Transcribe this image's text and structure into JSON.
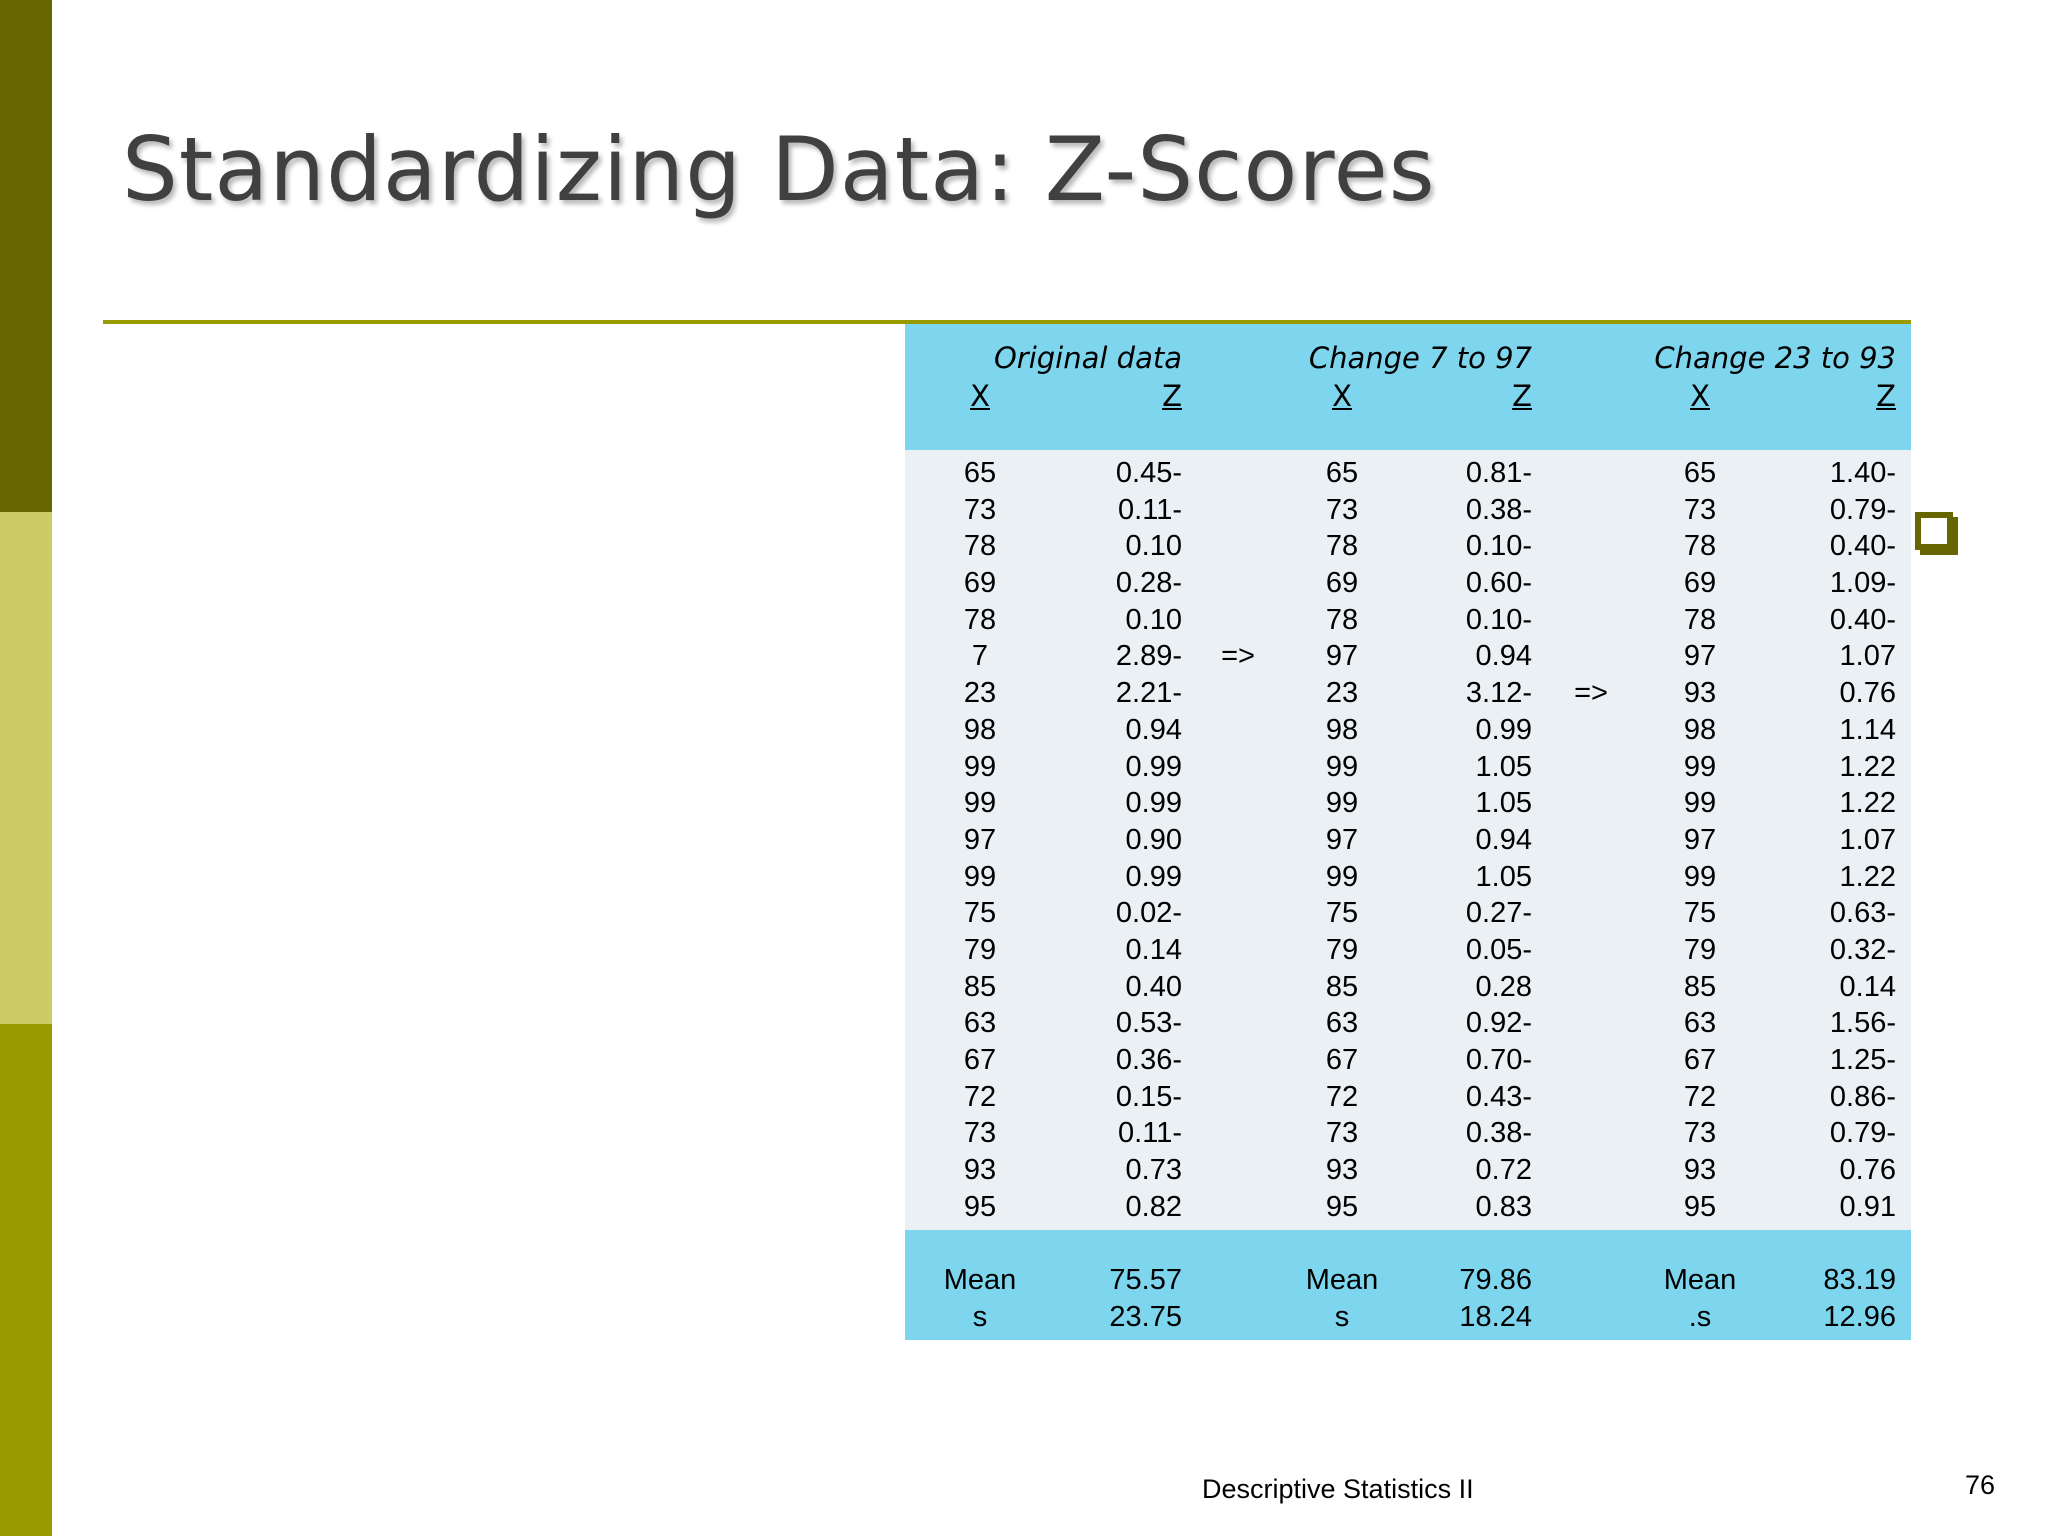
{
  "slide": {
    "title": "Standardizing Data:  Z-Scores",
    "footer": "Descriptive Statistics II",
    "page_number": "76",
    "colors": {
      "band_top": "#666600",
      "band_mid": "#CCCC66",
      "band_bottom": "#999900",
      "table_header": "#7DD6EE",
      "table_body": "#EAF0F4"
    }
  },
  "table": {
    "group_headers": [
      "Original data",
      "Change 7 to 97",
      "Change 23 to 93"
    ],
    "col_x": "X",
    "col_z": "Z",
    "rows": [
      {
        "x1": "65",
        "z1": "0.45-",
        "a1": "",
        "x2": "65",
        "z2": "0.81-",
        "a2": "",
        "x3": "65",
        "z3": "1.40-"
      },
      {
        "x1": "73",
        "z1": "0.11-",
        "a1": "",
        "x2": "73",
        "z2": "0.38-",
        "a2": "",
        "x3": "73",
        "z3": "0.79-"
      },
      {
        "x1": "78",
        "z1": "0.10",
        "a1": "",
        "x2": "78",
        "z2": "0.10-",
        "a2": "",
        "x3": "78",
        "z3": "0.40-"
      },
      {
        "x1": "69",
        "z1": "0.28-",
        "a1": "",
        "x2": "69",
        "z2": "0.60-",
        "a2": "",
        "x3": "69",
        "z3": "1.09-"
      },
      {
        "x1": "78",
        "z1": "0.10",
        "a1": "",
        "x2": "78",
        "z2": "0.10-",
        "a2": "",
        "x3": "78",
        "z3": "0.40-"
      },
      {
        "x1": "7",
        "z1": "2.89-",
        "a1": "=>",
        "x2": "97",
        "z2": "0.94",
        "a2": "",
        "x3": "97",
        "z3": "1.07"
      },
      {
        "x1": "23",
        "z1": "2.21-",
        "a1": "",
        "x2": "23",
        "z2": "3.12-",
        "a2": "=>",
        "x3": "93",
        "z3": "0.76"
      },
      {
        "x1": "98",
        "z1": "0.94",
        "a1": "",
        "x2": "98",
        "z2": "0.99",
        "a2": "",
        "x3": "98",
        "z3": "1.14"
      },
      {
        "x1": "99",
        "z1": "0.99",
        "a1": "",
        "x2": "99",
        "z2": "1.05",
        "a2": "",
        "x3": "99",
        "z3": "1.22"
      },
      {
        "x1": "99",
        "z1": "0.99",
        "a1": "",
        "x2": "99",
        "z2": "1.05",
        "a2": "",
        "x3": "99",
        "z3": "1.22"
      },
      {
        "x1": "97",
        "z1": "0.90",
        "a1": "",
        "x2": "97",
        "z2": "0.94",
        "a2": "",
        "x3": "97",
        "z3": "1.07"
      },
      {
        "x1": "99",
        "z1": "0.99",
        "a1": "",
        "x2": "99",
        "z2": "1.05",
        "a2": "",
        "x3": "99",
        "z3": "1.22"
      },
      {
        "x1": "75",
        "z1": "0.02-",
        "a1": "",
        "x2": "75",
        "z2": "0.27-",
        "a2": "",
        "x3": "75",
        "z3": "0.63-"
      },
      {
        "x1": "79",
        "z1": "0.14",
        "a1": "",
        "x2": "79",
        "z2": "0.05-",
        "a2": "",
        "x3": "79",
        "z3": "0.32-"
      },
      {
        "x1": "85",
        "z1": "0.40",
        "a1": "",
        "x2": "85",
        "z2": "0.28",
        "a2": "",
        "x3": "85",
        "z3": "0.14"
      },
      {
        "x1": "63",
        "z1": "0.53-",
        "a1": "",
        "x2": "63",
        "z2": "0.92-",
        "a2": "",
        "x3": "63",
        "z3": "1.56-"
      },
      {
        "x1": "67",
        "z1": "0.36-",
        "a1": "",
        "x2": "67",
        "z2": "0.70-",
        "a2": "",
        "x3": "67",
        "z3": "1.25-"
      },
      {
        "x1": "72",
        "z1": "0.15-",
        "a1": "",
        "x2": "72",
        "z2": "0.43-",
        "a2": "",
        "x3": "72",
        "z3": "0.86-"
      },
      {
        "x1": "73",
        "z1": "0.11-",
        "a1": "",
        "x2": "73",
        "z2": "0.38-",
        "a2": "",
        "x3": "73",
        "z3": "0.79-"
      },
      {
        "x1": "93",
        "z1": "0.73",
        "a1": "",
        "x2": "93",
        "z2": "0.72",
        "a2": "",
        "x3": "93",
        "z3": "0.76"
      },
      {
        "x1": "95",
        "z1": "0.82",
        "a1": "",
        "x2": "95",
        "z2": "0.83",
        "a2": "",
        "x3": "95",
        "z3": "0.91"
      }
    ],
    "footer_rows": [
      {
        "x1": "Mean",
        "z1": "75.57",
        "x2": "Mean",
        "z2": "79.86",
        "x3": "Mean",
        "z3": "83.19"
      },
      {
        "x1": "s",
        "z1": "23.75",
        "x2": "s",
        "z2": "18.24",
        "x3": ".s",
        "z3": "12.96"
      }
    ]
  }
}
